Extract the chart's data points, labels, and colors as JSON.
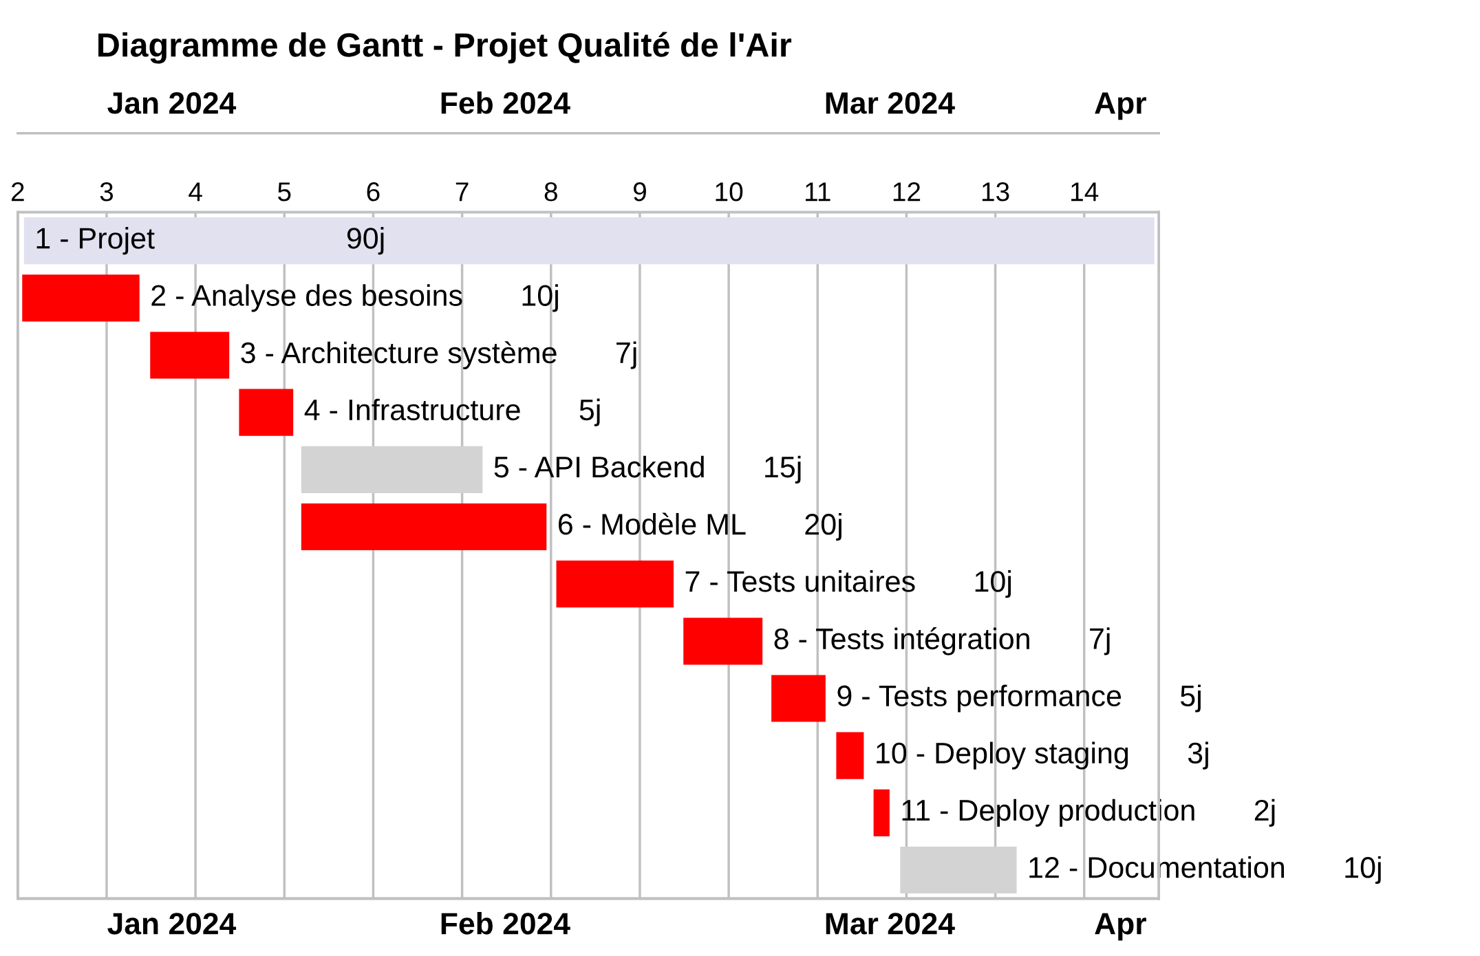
{
  "chart_data": {
    "type": "bar",
    "orientation": "horizontal",
    "title": "Diagramme de Gantt - Projet Qualité de l'Air",
    "categories": [
      "1 - Projet",
      "2 - Analyse des besoins",
      "3 - Architecture système",
      "4 - Infrastructure",
      "5 - API Backend",
      "6 - Modèle ML",
      "7 - Tests unitaires",
      "8 - Tests intégration",
      "9 - Tests performance",
      "10 - Deploy staging",
      "11 - Deploy production",
      "12 - Documentation"
    ],
    "base": [
      2.07,
      2.05,
      3.49,
      4.49,
      5.19,
      5.19,
      8.06,
      9.49,
      10.48,
      11.21,
      11.63,
      11.93
    ],
    "values": [
      12.72,
      1.32,
      0.89,
      0.61,
      2.04,
      2.76,
      1.32,
      0.89,
      0.61,
      0.31,
      0.18,
      1.31
    ],
    "colors": [
      "#e1e1f0",
      "#ff0000",
      "#ff0000",
      "#ff0000",
      "#d3d3d3",
      "#ff0000",
      "#ff0000",
      "#ff0000",
      "#ff0000",
      "#ff0000",
      "#ff0000",
      "#d3d3d3"
    ],
    "annotations": [
      "90j",
      "10j",
      "7j",
      "5j",
      "15j",
      "20j",
      "10j",
      "7j",
      "5j",
      "3j",
      "2j",
      "10j"
    ],
    "xlim": [
      2,
      14.84
    ],
    "xticks": [
      2,
      3,
      4,
      5,
      6,
      7,
      8,
      9,
      10,
      11,
      12,
      13,
      14
    ],
    "x2lim": [
      "2024-01-08",
      "2024-04-06"
    ],
    "x2ticks": [
      {
        "value": "2024-01-20",
        "label": "Jan 2024"
      },
      {
        "value": "2024-02-15",
        "label": "Feb 2024"
      },
      {
        "value": "2024-03-16",
        "label": "Mar 2024"
      },
      {
        "value": "2024-04-03",
        "label": "Apr"
      }
    ],
    "grid": "x"
  }
}
